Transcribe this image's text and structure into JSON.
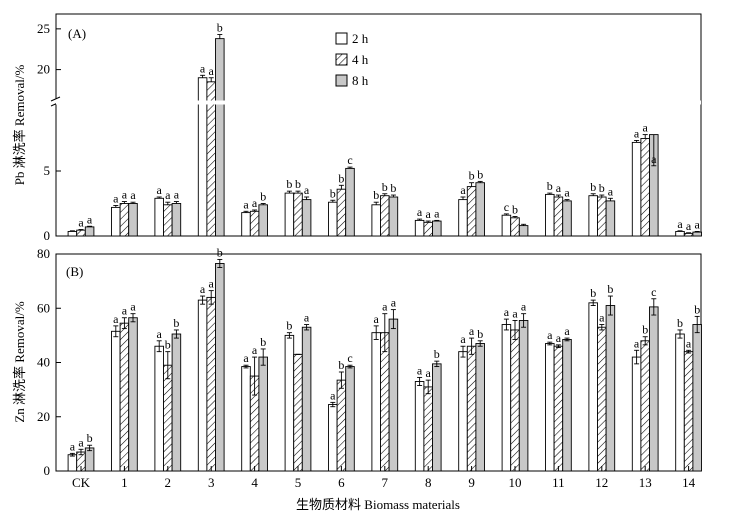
{
  "figure": {
    "xlabel": "生物质材料 Biomass materials"
  },
  "legend": {
    "entries": [
      {
        "label": "2 h",
        "pattern": "white"
      },
      {
        "label": "4 h",
        "pattern": "hatch"
      },
      {
        "label": "8 h",
        "pattern": "gray"
      }
    ]
  },
  "colors": {
    "bar_2h": "#ffffff",
    "bar_4h_hatch": "#000000",
    "bar_8h": "#c8c8c8",
    "axis": "#000000"
  },
  "chart_data": [
    {
      "type": "bar",
      "panel_label": "(A)",
      "ylabel": "Pb 淋洗率 Removal/%",
      "ylim": [
        0,
        25
      ],
      "axis_break": [
        8,
        18
      ],
      "y_ticks": [
        0,
        5,
        20,
        25
      ],
      "categories": [
        "CK",
        "1",
        "2",
        "3",
        "4",
        "5",
        "6",
        "7",
        "8",
        "9",
        "10",
        "11",
        "12",
        "13",
        "14"
      ],
      "series": [
        {
          "name": "2 h",
          "values": [
            0.35,
            2.2,
            2.9,
            19.0,
            1.8,
            3.3,
            2.6,
            2.4,
            1.2,
            2.8,
            1.6,
            3.2,
            3.1,
            7.2,
            0.35
          ],
          "errors": [
            0.05,
            0.15,
            0.1,
            0.3,
            0.1,
            0.15,
            0.15,
            0.2,
            0.1,
            0.2,
            0.1,
            0.1,
            0.15,
            0.15,
            0.05
          ],
          "labels": [
            "",
            "a",
            "a",
            "a",
            "a",
            "b",
            "b",
            "b",
            "a",
            "a",
            "c",
            "b",
            "b",
            "a",
            "a"
          ]
        },
        {
          "name": "4 h",
          "values": [
            0.45,
            2.5,
            2.4,
            18.5,
            1.9,
            3.3,
            3.6,
            3.1,
            1.05,
            3.8,
            1.4,
            3.0,
            3.0,
            7.5,
            0.2
          ],
          "errors": [
            0.05,
            0.15,
            0.2,
            0.5,
            0.1,
            0.15,
            0.3,
            0.15,
            0.1,
            0.3,
            0.1,
            0.15,
            0.15,
            0.3,
            0.05
          ],
          "labels": [
            "a",
            "a",
            "a",
            "a",
            "a",
            "b",
            "b",
            "b",
            "a",
            "b",
            "b",
            "a",
            "b",
            "a",
            "a"
          ]
        },
        {
          "name": "8 h",
          "values": [
            0.7,
            2.5,
            2.5,
            23.8,
            2.4,
            2.8,
            5.2,
            3.0,
            1.15,
            4.1,
            0.8,
            2.7,
            2.7,
            7.8,
            0.3
          ],
          "errors": [
            0.05,
            0.1,
            0.15,
            0.5,
            0.1,
            0.2,
            0.1,
            0.15,
            0.05,
            0.1,
            0.1,
            0.1,
            0.2,
            0.4,
            0.05
          ],
          "labels": [
            "a",
            "a",
            "a",
            "b",
            "b",
            "a",
            "c",
            "b",
            "a",
            "b",
            "",
            "a",
            "a",
            "a",
            "a"
          ]
        }
      ]
    },
    {
      "type": "bar",
      "panel_label": "(B)",
      "ylabel": "Zn 淋洗率 Removal/%",
      "ylim": [
        0,
        80
      ],
      "y_ticks": [
        0,
        20,
        40,
        60,
        80
      ],
      "categories": [
        "CK",
        "1",
        "2",
        "3",
        "4",
        "5",
        "6",
        "7",
        "8",
        "9",
        "10",
        "11",
        "12",
        "13",
        "14"
      ],
      "series": [
        {
          "name": "2 h",
          "values": [
            6,
            51.5,
            46,
            63,
            38.5,
            50,
            24.5,
            51,
            33,
            44,
            54,
            47,
            62,
            42,
            50.5
          ],
          "errors": [
            0.5,
            2,
            2,
            1.5,
            0.5,
            1,
            0.8,
            2.5,
            1.5,
            2,
            2,
            0.5,
            1,
            2.5,
            1.5
          ],
          "labels": [
            "a",
            "a",
            "a",
            "a",
            "a",
            "b",
            "a",
            "a",
            "a",
            "a",
            "a",
            "a",
            "b",
            "a",
            "b"
          ]
        },
        {
          "name": "4 h",
          "values": [
            7,
            54.5,
            39,
            64,
            35,
            43,
            33.5,
            51,
            31,
            46,
            52,
            46,
            53,
            48,
            44
          ],
          "errors": [
            1,
            2,
            5,
            2.5,
            7,
            0,
            3,
            7,
            2.5,
            3,
            3.5,
            0.5,
            1,
            1.5,
            0.5
          ],
          "labels": [
            "a",
            "a",
            "b",
            "a",
            "a",
            "",
            "b",
            "a",
            "a",
            "a",
            "a",
            "a",
            "a",
            "b",
            "a"
          ]
        },
        {
          "name": "8 h",
          "values": [
            8.5,
            56.5,
            50.5,
            76.5,
            42,
            53,
            38.5,
            56,
            39.5,
            47,
            55.5,
            48.5,
            61,
            60.5,
            54
          ],
          "errors": [
            1,
            1.5,
            1.5,
            1.5,
            3,
            1,
            0.5,
            3.5,
            1,
            1,
            2.5,
            0.5,
            3.5,
            3,
            3
          ],
          "labels": [
            "b",
            "a",
            "b",
            "b",
            "b",
            "a",
            "c",
            "a",
            "b",
            "b",
            "a",
            "a",
            "b",
            "c",
            "b"
          ]
        }
      ]
    }
  ]
}
